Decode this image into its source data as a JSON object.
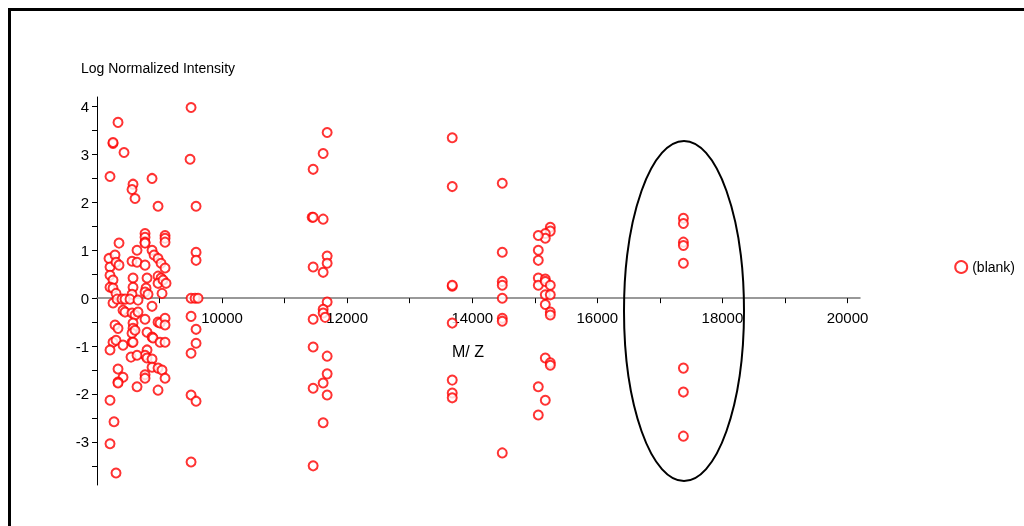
{
  "chart_data": {
    "type": "scatter",
    "xlabel": "M/ Z",
    "ylabel": "Log Normalized Intensity",
    "xlim": [
      8000,
      20200
    ],
    "ylim": [
      -3.9,
      4.2
    ],
    "xticks": [
      {
        "value": 9000,
        "label": null
      },
      10000,
      {
        "value": 11000,
        "label": null
      },
      12000,
      {
        "value": 13000,
        "label": null
      },
      14000,
      {
        "value": 15000,
        "label": null
      },
      16000,
      {
        "value": 17000,
        "label": null
      },
      18000,
      {
        "value": 19000,
        "label": null
      },
      20000
    ],
    "yticks": [
      {
        "value": -3.5,
        "label": null
      },
      -3,
      {
        "value": -2.5,
        "label": null
      },
      -2,
      {
        "value": -1.5,
        "label": null
      },
      -1,
      {
        "value": -0.5,
        "label": null
      },
      0,
      {
        "value": 0.5,
        "label": null
      },
      1,
      {
        "value": 1.5,
        "label": null
      },
      2,
      {
        "value": 2.5,
        "label": null
      },
      3,
      {
        "value": 3.5,
        "label": null
      },
      4
    ],
    "grid": false,
    "legend": "right",
    "marker": "circle",
    "series": [
      {
        "name": "(blank)",
        "color": "#ff0000",
        "x": [
          9504,
          8336,
          8256,
          8256,
          8432,
          9488,
          8208,
          8880,
          8576,
          8560,
          8608,
          8976,
          9584,
          8768,
          8768,
          8768,
          8768,
          9088,
          9088,
          9088,
          8352,
          8640,
          8880,
          8912,
          8976,
          9024,
          9088,
          8192,
          8208,
          8288,
          8304,
          8352,
          8560,
          8640,
          8768,
          8208,
          8256,
          8208,
          8256,
          8304,
          8576,
          8576,
          8560,
          8800,
          8784,
          8768,
          8816,
          8976,
          9024,
          8976,
          9056,
          9104,
          9040,
          8256,
          8320,
          8400,
          8448,
          8528,
          8656,
          8880,
          8416,
          8448,
          8560,
          8608,
          8656,
          8288,
          8336,
          8768,
          8976,
          9008,
          9088,
          9088,
          8576,
          8576,
          8560,
          8608,
          8800,
          8880,
          8896,
          8256,
          8304,
          8208,
          8416,
          8560,
          8576,
          9008,
          9088,
          8800,
          8768,
          8544,
          8640,
          8800,
          8880,
          8880,
          8976,
          9040,
          9088,
          8336,
          8416,
          8768,
          8768,
          8336,
          8336,
          8640,
          8976,
          8208,
          8272,
          8208,
          8304,
          9504,
          9584,
          9584,
          9504,
          9504,
          9584,
          9504,
          9584,
          9584,
          9504,
          9568,
          9616,
          11680,
          11616,
          11456,
          11440,
          11456,
          11616,
          11680,
          11680,
          11616,
          11456,
          11680,
          11616,
          11616,
          11648,
          11456,
          11456,
          11680,
          11680,
          11616,
          11680,
          11456,
          11616,
          11456,
          13680,
          13680,
          13680,
          13680,
          13680,
          13680,
          13680,
          13680,
          14480,
          14480,
          14480,
          14480,
          14480,
          14480,
          14480,
          14480,
          15248,
          15248,
          15168,
          15168,
          15056,
          15056,
          15056,
          15056,
          15056,
          15168,
          15168,
          15248,
          15168,
          15248,
          15168,
          15248,
          15248,
          15168,
          15248,
          15248,
          15056,
          15168,
          15056,
          17376,
          17376,
          17376,
          17376,
          17376,
          17376,
          17376,
          17376
        ],
        "values": [
          3.98,
          3.67,
          3.23,
          3.25,
          3.04,
          2.9,
          2.54,
          2.5,
          2.38,
          2.27,
          2.08,
          1.92,
          1.92,
          1.35,
          1.27,
          1.17,
          1.15,
          1.31,
          1.25,
          1.17,
          1.15,
          1.0,
          1.0,
          0.9,
          0.83,
          0.73,
          0.63,
          0.83,
          0.65,
          0.9,
          0.75,
          0.69,
          0.77,
          0.75,
          0.69,
          0.48,
          0.38,
          0.23,
          0.21,
          0.1,
          0.42,
          0.23,
          0.08,
          0.42,
          0.21,
          0.13,
          0.08,
          0.46,
          0.42,
          0.31,
          0.38,
          0.31,
          0.1,
          -0.1,
          -0.02,
          -0.02,
          -0.02,
          -0.02,
          -0.04,
          -0.17,
          -0.25,
          -0.29,
          -0.31,
          -0.35,
          -0.29,
          -0.56,
          -0.63,
          -0.44,
          -0.5,
          -0.52,
          -0.42,
          -0.56,
          -0.52,
          -0.63,
          -0.73,
          -0.67,
          -0.71,
          -0.81,
          -0.83,
          -0.92,
          -0.88,
          -1.08,
          -0.98,
          -0.92,
          -0.92,
          -0.92,
          -0.92,
          -1.08,
          -1.19,
          -1.23,
          -1.19,
          -1.25,
          -1.27,
          -1.44,
          -1.46,
          -1.5,
          -1.67,
          -1.48,
          -1.65,
          -1.6,
          -1.67,
          -1.75,
          -1.77,
          -1.85,
          -1.92,
          -2.13,
          -2.58,
          -3.04,
          -3.65,
          -0.38,
          -0.65,
          -0.94,
          -1.15,
          -2.02,
          -2.15,
          -3.42,
          0.96,
          0.79,
          0,
          0,
          0,
          3.46,
          3.02,
          2.69,
          1.69,
          1.69,
          1.65,
          0.88,
          0.73,
          0.54,
          0.65,
          -0.08,
          -0.23,
          -0.31,
          -0.4,
          -0.44,
          -1.02,
          -1.21,
          -1.58,
          -1.77,
          -2.02,
          -1.88,
          -2.6,
          -3.5,
          3.35,
          2.33,
          0.25,
          0.27,
          -0.52,
          -1.71,
          -1.98,
          -2.08,
          2.4,
          0.96,
          0.35,
          0.27,
          0,
          -0.42,
          -0.48,
          -3.23,
          1.48,
          1.4,
          1.35,
          1.25,
          1.31,
          1.0,
          0.79,
          0.42,
          0.27,
          0.4,
          0.35,
          0.27,
          0.07,
          0.07,
          -0.13,
          -0.29,
          -0.35,
          -1.25,
          -1.35,
          -1.4,
          -1.85,
          -2.13,
          -2.44,
          1.67,
          1.56,
          1.17,
          1.1,
          0.73,
          -1.46,
          -1.96,
          -2.88
        ]
      }
    ]
  }
}
